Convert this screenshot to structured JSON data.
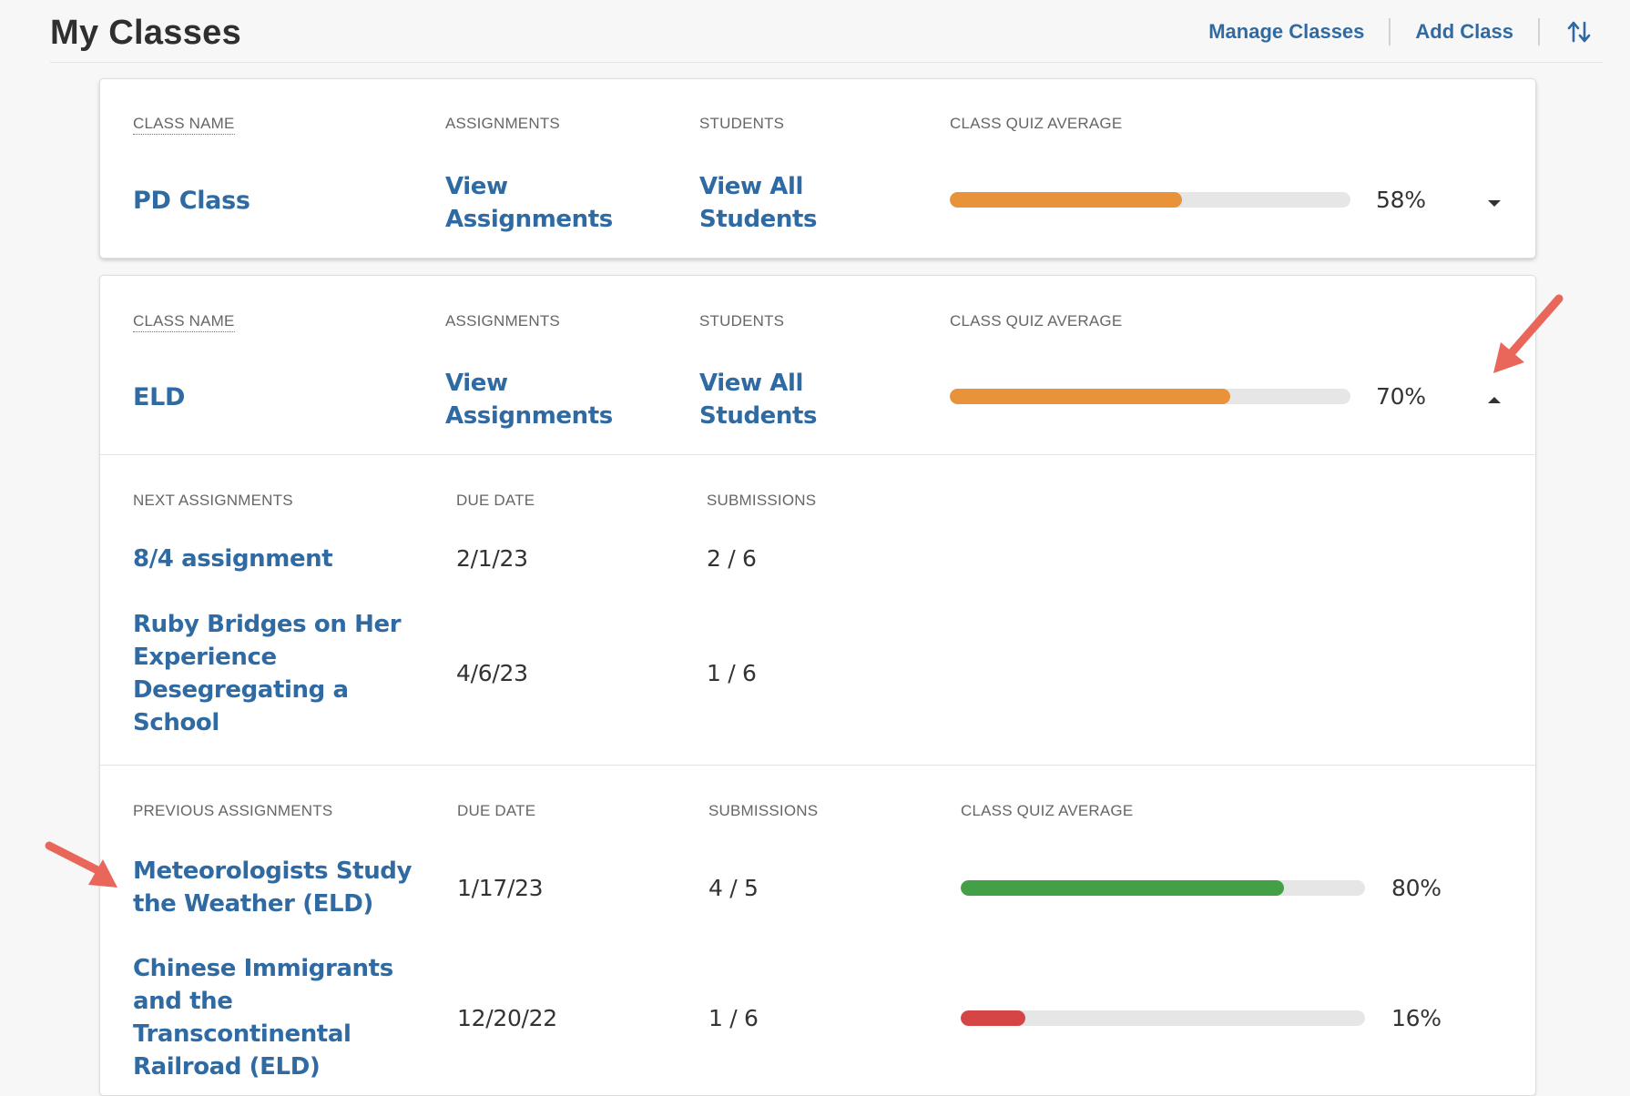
{
  "header": {
    "title": "My Classes",
    "manage_label": "Manage Classes",
    "add_label": "Add Class",
    "sort_icon": "sort-arrows-icon"
  },
  "columns": {
    "class_name": "CLASS NAME",
    "assignments": "ASSIGNMENTS",
    "students": "STUDENTS",
    "quiz_avg": "CLASS QUIZ AVERAGE"
  },
  "classes": [
    {
      "name": "PD Class",
      "assign_line1": "View",
      "assign_line2": "Assignments",
      "students_line1": "View All",
      "students_line2": "Students",
      "average_pct": 58,
      "average_label": "58%",
      "expanded": false
    },
    {
      "name": "ELD",
      "assign_line1": "View",
      "assign_line2": "Assignments",
      "students_line1": "View All",
      "students_line2": "Students",
      "average_pct": 70,
      "average_label": "70%",
      "expanded": true
    }
  ],
  "next_section": {
    "col_assignments": "NEXT ASSIGNMENTS",
    "col_due": "DUE DATE",
    "col_submissions": "SUBMISSIONS",
    "rows": [
      {
        "title_lines": [
          "8/4 assignment"
        ],
        "due": "2/1/23",
        "submissions": "2 / 6"
      },
      {
        "title_lines": [
          "Ruby Bridges on Her",
          "Experience",
          "Desegregating a",
          "School"
        ],
        "due": "4/6/23",
        "submissions": "1 / 6"
      }
    ]
  },
  "previous_section": {
    "col_assignments": "PREVIOUS ASSIGNMENTS",
    "col_due": "DUE DATE",
    "col_submissions": "SUBMISSIONS",
    "col_avg": "CLASS QUIZ AVERAGE",
    "rows": [
      {
        "title_lines": [
          "Meteorologists Study",
          "the Weather (ELD)"
        ],
        "due": "1/17/23",
        "submissions": "4 / 5",
        "average_pct": 80,
        "average_label": "80%",
        "color": "#43a047"
      },
      {
        "title_lines": [
          "Chinese Immigrants",
          "and the",
          "Transcontinental",
          "Railroad (ELD)"
        ],
        "due": "12/20/22",
        "submissions": "1 / 6",
        "average_pct": 16,
        "average_label": "16%",
        "color": "#d64545"
      }
    ]
  },
  "colors": {
    "link": "#2f6aa3",
    "orange_bar": "#e8923a",
    "track": "#e6e6e6",
    "annotation_arrow": "#e8675a"
  }
}
